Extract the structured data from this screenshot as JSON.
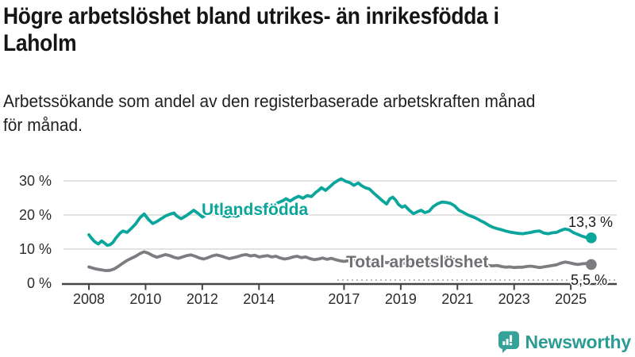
{
  "header": {
    "title_lines": [
      "Högre arbetslöshet bland utrikes- än inrikesfödda i",
      "Laholm"
    ],
    "subtitle_lines": [
      "Arbetssökande som andel av den registerbaserade arbetskraften månad",
      "för månad."
    ]
  },
  "colors": {
    "teal": "#0aa59b",
    "gray_line": "#7c7c81",
    "label_gray": "#6f6f74",
    "grid": "#d9d9d9",
    "axis": "#454545",
    "leader": "#b9b9bd",
    "brand": "#2a9c93",
    "tick_text": "#2b2b2b"
  },
  "footer": {
    "brand": "Newsworthy"
  },
  "chart_data": {
    "type": "line",
    "title": "Högre arbetslöshet bland utrikes- än inrikesfödda i Laholm",
    "subtitle": "Arbetssökande som andel av den registerbaserade arbetskraften månad för månad.",
    "unit": "%",
    "grid": "horizontal",
    "legend_position": "inline-labels",
    "xlim": [
      2007.9,
      2025.9
    ],
    "ylim": [
      0,
      32
    ],
    "x_ticks": [
      {
        "year": 2008,
        "label": "2008"
      },
      {
        "year": 2010,
        "label": "2010"
      },
      {
        "year": 2012,
        "label": "2012"
      },
      {
        "year": 2014,
        "label": "2014"
      },
      {
        "year": 2017,
        "label": "2017"
      },
      {
        "year": 2019,
        "label": "2019"
      },
      {
        "year": 2021,
        "label": "2021"
      },
      {
        "year": 2023,
        "label": "2023"
      },
      {
        "year": 2025,
        "label": "2025"
      }
    ],
    "y_ticks": [
      {
        "value": 30,
        "label": "30 %"
      },
      {
        "value": 20,
        "label": "20 %"
      },
      {
        "value": 10,
        "label": "10 %"
      },
      {
        "value": 0,
        "label": "0 %"
      }
    ],
    "series": [
      {
        "name": "Utlandsfödda",
        "color": "#0aa59b",
        "end_label": "13,3 %",
        "end_value": 13.3,
        "points": [
          [
            2008.0,
            14.2
          ],
          [
            2008.1,
            13.1
          ],
          [
            2008.2,
            12.2
          ],
          [
            2008.33,
            11.5
          ],
          [
            2008.45,
            12.4
          ],
          [
            2008.55,
            11.8
          ],
          [
            2008.65,
            11.1
          ],
          [
            2008.75,
            11.3
          ],
          [
            2008.85,
            12.0
          ],
          [
            2008.95,
            13.2
          ],
          [
            2009.1,
            14.7
          ],
          [
            2009.2,
            15.3
          ],
          [
            2009.35,
            14.9
          ],
          [
            2009.5,
            16.1
          ],
          [
            2009.65,
            17.4
          ],
          [
            2009.8,
            19.2
          ],
          [
            2009.95,
            20.3
          ],
          [
            2010.1,
            18.7
          ],
          [
            2010.25,
            17.5
          ],
          [
            2010.4,
            18.1
          ],
          [
            2010.55,
            18.9
          ],
          [
            2010.7,
            19.7
          ],
          [
            2010.85,
            20.2
          ],
          [
            2011.0,
            20.6
          ],
          [
            2011.1,
            19.7
          ],
          [
            2011.25,
            18.9
          ],
          [
            2011.4,
            19.6
          ],
          [
            2011.55,
            20.5
          ],
          [
            2011.7,
            21.4
          ],
          [
            2011.85,
            20.5
          ],
          [
            2012.0,
            19.4
          ],
          [
            2012.15,
            20.1
          ],
          [
            2012.3,
            21.2
          ],
          [
            2012.45,
            20.7
          ],
          [
            2012.6,
            20.2
          ],
          [
            2012.75,
            19.8
          ],
          [
            2012.9,
            19.5
          ],
          [
            2013.05,
            19.9
          ],
          [
            2013.2,
            19.6
          ],
          [
            2013.4,
            20.3
          ],
          [
            2013.55,
            20.9
          ],
          [
            2013.7,
            20.5
          ],
          [
            2013.85,
            21.0
          ],
          [
            2014.0,
            21.6
          ],
          [
            2014.1,
            22.1
          ],
          [
            2014.25,
            21.7
          ],
          [
            2014.4,
            22.5
          ],
          [
            2014.55,
            23.2
          ],
          [
            2014.7,
            23.7
          ],
          [
            2014.85,
            24.2
          ],
          [
            2014.95,
            24.8
          ],
          [
            2015.1,
            24.1
          ],
          [
            2015.25,
            24.9
          ],
          [
            2015.4,
            25.5
          ],
          [
            2015.55,
            24.9
          ],
          [
            2015.7,
            25.7
          ],
          [
            2015.85,
            25.4
          ],
          [
            2016.0,
            26.6
          ],
          [
            2016.1,
            27.2
          ],
          [
            2016.2,
            28.0
          ],
          [
            2016.35,
            27.2
          ],
          [
            2016.5,
            28.3
          ],
          [
            2016.65,
            29.4
          ],
          [
            2016.8,
            30.2
          ],
          [
            2016.9,
            30.6
          ],
          [
            2017.05,
            29.9
          ],
          [
            2017.2,
            29.5
          ],
          [
            2017.35,
            28.7
          ],
          [
            2017.5,
            29.4
          ],
          [
            2017.6,
            28.7
          ],
          [
            2017.75,
            28.0
          ],
          [
            2017.9,
            27.6
          ],
          [
            2018.05,
            26.4
          ],
          [
            2018.2,
            25.3
          ],
          [
            2018.35,
            24.2
          ],
          [
            2018.5,
            23.2
          ],
          [
            2018.62,
            24.8
          ],
          [
            2018.72,
            25.2
          ],
          [
            2018.82,
            24.4
          ],
          [
            2018.92,
            23.1
          ],
          [
            2019.05,
            22.3
          ],
          [
            2019.15,
            22.7
          ],
          [
            2019.3,
            21.4
          ],
          [
            2019.45,
            20.4
          ],
          [
            2019.6,
            21.0
          ],
          [
            2019.72,
            21.4
          ],
          [
            2019.85,
            20.7
          ],
          [
            2020.0,
            21.1
          ],
          [
            2020.15,
            22.5
          ],
          [
            2020.3,
            23.3
          ],
          [
            2020.45,
            23.8
          ],
          [
            2020.6,
            23.7
          ],
          [
            2020.75,
            23.4
          ],
          [
            2020.9,
            22.7
          ],
          [
            2021.05,
            21.4
          ],
          [
            2021.2,
            20.8
          ],
          [
            2021.35,
            20.1
          ],
          [
            2021.5,
            19.6
          ],
          [
            2021.65,
            19.1
          ],
          [
            2021.8,
            18.4
          ],
          [
            2021.95,
            17.8
          ],
          [
            2022.1,
            17.0
          ],
          [
            2022.25,
            16.4
          ],
          [
            2022.4,
            16.0
          ],
          [
            2022.55,
            15.7
          ],
          [
            2022.7,
            15.3
          ],
          [
            2022.85,
            15.0
          ],
          [
            2023.0,
            14.8
          ],
          [
            2023.15,
            14.6
          ],
          [
            2023.3,
            14.5
          ],
          [
            2023.45,
            14.7
          ],
          [
            2023.6,
            14.9
          ],
          [
            2023.75,
            15.2
          ],
          [
            2023.9,
            15.3
          ],
          [
            2024.05,
            14.7
          ],
          [
            2024.2,
            14.5
          ],
          [
            2024.35,
            14.8
          ],
          [
            2024.5,
            14.9
          ],
          [
            2024.65,
            15.5
          ],
          [
            2024.8,
            15.9
          ],
          [
            2024.95,
            15.6
          ],
          [
            2025.1,
            14.8
          ],
          [
            2025.25,
            14.3
          ],
          [
            2025.4,
            13.8
          ],
          [
            2025.55,
            13.4
          ],
          [
            2025.65,
            13.0
          ],
          [
            2025.72,
            13.3
          ]
        ]
      },
      {
        "name": "Total arbetslöshet",
        "color": "#7c7c81",
        "end_label": "5,5 %",
        "end_value": 5.5,
        "points": [
          [
            2008.0,
            4.8
          ],
          [
            2008.15,
            4.4
          ],
          [
            2008.3,
            4.1
          ],
          [
            2008.45,
            3.9
          ],
          [
            2008.6,
            3.7
          ],
          [
            2008.75,
            3.8
          ],
          [
            2008.9,
            4.2
          ],
          [
            2009.05,
            5.0
          ],
          [
            2009.2,
            5.9
          ],
          [
            2009.35,
            6.7
          ],
          [
            2009.5,
            7.3
          ],
          [
            2009.65,
            7.9
          ],
          [
            2009.8,
            8.7
          ],
          [
            2009.95,
            9.2
          ],
          [
            2010.1,
            8.8
          ],
          [
            2010.25,
            8.1
          ],
          [
            2010.4,
            7.6
          ],
          [
            2010.55,
            8.0
          ],
          [
            2010.7,
            8.4
          ],
          [
            2010.85,
            8.1
          ],
          [
            2011.0,
            7.6
          ],
          [
            2011.15,
            7.3
          ],
          [
            2011.3,
            7.7
          ],
          [
            2011.45,
            8.1
          ],
          [
            2011.6,
            8.3
          ],
          [
            2011.75,
            7.9
          ],
          [
            2011.9,
            7.4
          ],
          [
            2012.05,
            7.1
          ],
          [
            2012.2,
            7.5
          ],
          [
            2012.35,
            8.0
          ],
          [
            2012.5,
            8.3
          ],
          [
            2012.65,
            8.0
          ],
          [
            2012.8,
            7.6
          ],
          [
            2012.95,
            7.2
          ],
          [
            2013.1,
            7.5
          ],
          [
            2013.25,
            7.8
          ],
          [
            2013.4,
            8.2
          ],
          [
            2013.55,
            8.4
          ],
          [
            2013.7,
            8.0
          ],
          [
            2013.85,
            8.2
          ],
          [
            2014.0,
            7.7
          ],
          [
            2014.15,
            7.9
          ],
          [
            2014.3,
            8.1
          ],
          [
            2014.45,
            7.7
          ],
          [
            2014.6,
            7.9
          ],
          [
            2014.75,
            7.4
          ],
          [
            2014.9,
            7.1
          ],
          [
            2015.05,
            7.3
          ],
          [
            2015.2,
            7.7
          ],
          [
            2015.35,
            7.9
          ],
          [
            2015.5,
            7.5
          ],
          [
            2015.65,
            7.7
          ],
          [
            2015.8,
            7.2
          ],
          [
            2015.95,
            6.9
          ],
          [
            2016.1,
            7.1
          ],
          [
            2016.25,
            7.4
          ],
          [
            2016.4,
            7.0
          ],
          [
            2016.55,
            7.3
          ],
          [
            2016.7,
            6.9
          ],
          [
            2016.85,
            6.6
          ],
          [
            2017.0,
            6.4
          ],
          [
            2017.15,
            6.6
          ],
          [
            2017.3,
            6.9
          ],
          [
            2017.45,
            6.5
          ],
          [
            2017.6,
            6.7
          ],
          [
            2017.75,
            6.3
          ],
          [
            2017.9,
            6.0
          ],
          [
            2018.05,
            5.8
          ],
          [
            2018.2,
            6.1
          ],
          [
            2018.35,
            6.4
          ],
          [
            2018.5,
            6.0
          ],
          [
            2018.65,
            6.2
          ],
          [
            2018.8,
            5.8
          ],
          [
            2018.95,
            5.6
          ],
          [
            2019.1,
            5.8
          ],
          [
            2019.25,
            6.1
          ],
          [
            2019.4,
            5.8
          ],
          [
            2019.55,
            6.0
          ],
          [
            2019.7,
            5.7
          ],
          [
            2019.85,
            5.5
          ],
          [
            2020.0,
            5.8
          ],
          [
            2020.15,
            6.4
          ],
          [
            2020.3,
            7.0
          ],
          [
            2020.45,
            7.4
          ],
          [
            2020.6,
            7.5
          ],
          [
            2020.75,
            7.2
          ],
          [
            2020.9,
            6.9
          ],
          [
            2021.05,
            6.7
          ],
          [
            2021.2,
            6.5
          ],
          [
            2021.35,
            6.6
          ],
          [
            2021.5,
            6.3
          ],
          [
            2021.65,
            5.9
          ],
          [
            2021.8,
            5.6
          ],
          [
            2021.95,
            5.4
          ],
          [
            2022.1,
            5.2
          ],
          [
            2022.25,
            5.1
          ],
          [
            2022.4,
            5.2
          ],
          [
            2022.55,
            4.9
          ],
          [
            2022.7,
            4.7
          ],
          [
            2022.85,
            4.8
          ],
          [
            2023.0,
            4.6
          ],
          [
            2023.15,
            4.7
          ],
          [
            2023.3,
            4.7
          ],
          [
            2023.45,
            4.9
          ],
          [
            2023.6,
            5.0
          ],
          [
            2023.75,
            4.8
          ],
          [
            2023.9,
            4.6
          ],
          [
            2024.05,
            4.8
          ],
          [
            2024.2,
            5.0
          ],
          [
            2024.35,
            5.2
          ],
          [
            2024.5,
            5.4
          ],
          [
            2024.65,
            5.9
          ],
          [
            2024.8,
            6.2
          ],
          [
            2024.95,
            6.0
          ],
          [
            2025.1,
            5.7
          ],
          [
            2025.25,
            5.5
          ],
          [
            2025.4,
            5.7
          ],
          [
            2025.55,
            5.8
          ],
          [
            2025.65,
            5.6
          ],
          [
            2025.72,
            5.5
          ]
        ]
      }
    ]
  }
}
